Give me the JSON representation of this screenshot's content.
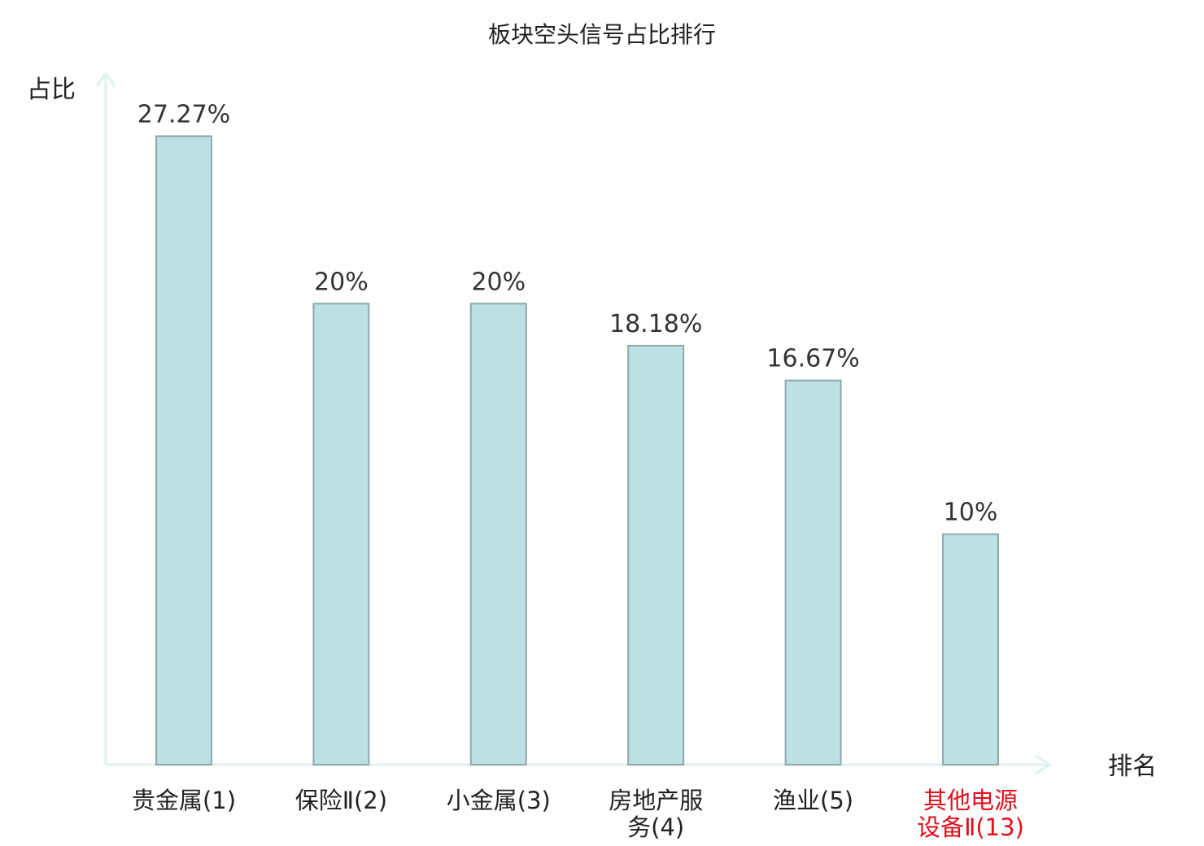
{
  "chart_data": {
    "type": "bar",
    "title": "板块空头信号占比排行",
    "xlabel": "排名",
    "ylabel": "占比",
    "categories": [
      {
        "lines": [
          "贵金属(1)"
        ],
        "highlight": false
      },
      {
        "lines": [
          "保险Ⅱ(2)"
        ],
        "highlight": false
      },
      {
        "lines": [
          "小金属(3)"
        ],
        "highlight": false
      },
      {
        "lines": [
          "房地产服",
          "务(4)"
        ],
        "highlight": false
      },
      {
        "lines": [
          "渔业(5)"
        ],
        "highlight": false
      },
      {
        "lines": [
          "其他电源",
          "设备Ⅱ(13)"
        ],
        "highlight": true
      }
    ],
    "values": [
      27.27,
      20,
      20,
      18.18,
      16.67,
      10
    ],
    "value_labels": [
      "27.27%",
      "20%",
      "20%",
      "18.18%",
      "16.67%",
      "10%"
    ],
    "ylim": [
      0,
      30
    ],
    "grid": false,
    "colors": {
      "bar_fill": "#bde0e3",
      "bar_stroke": "#8fa8ab",
      "axis": "#dff2ef",
      "highlight_text": "#e0101c",
      "text": "#222222"
    }
  }
}
